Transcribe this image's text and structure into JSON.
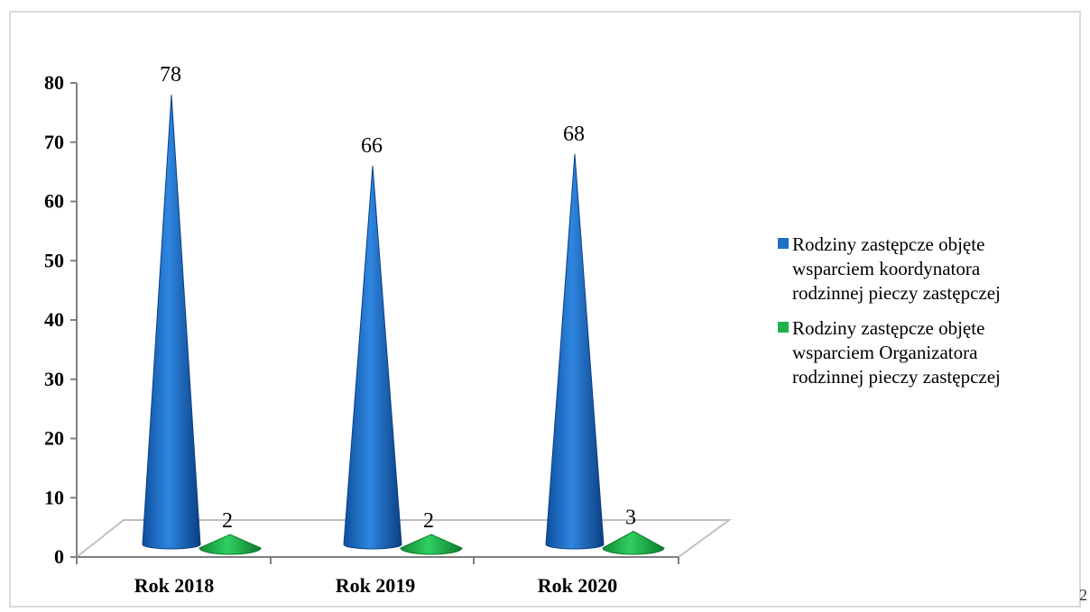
{
  "chart_data": {
    "type": "bar",
    "shape": "cone",
    "categories": [
      "Rok 2018",
      "Rok 2019",
      "Rok 2020"
    ],
    "series": [
      {
        "name": "Rodziny zastępcze objęte wsparciem koordynatora rodzinnej pieczy zastępczej",
        "color": "#1f6fc5",
        "values": [
          78,
          66,
          68
        ]
      },
      {
        "name": "Rodziny zastępcze objęte wsparciem Organizatora rodzinnej pieczy zastępczej",
        "color": "#22b04a",
        "values": [
          2,
          2,
          3
        ]
      }
    ],
    "ylim": [
      0,
      80
    ],
    "yticks": [
      "0",
      "10",
      "20",
      "30",
      "40",
      "50",
      "60",
      "70",
      "80"
    ],
    "grid": false,
    "legend": "right",
    "title": "",
    "xlabel": "",
    "ylabel": ""
  },
  "legend": {
    "items": [
      {
        "lines": [
          "Rodziny zastępcze objęte",
          "wsparciem koordynatora",
          "rodzinnej pieczy zastępczej"
        ],
        "color": "#1f6fc5"
      },
      {
        "lines": [
          "Rodziny zastępcze objęte",
          "wsparciem Organizatora",
          "rodzinnej pieczy zastępczej"
        ],
        "color": "#22b04a"
      }
    ]
  },
  "corner_mark": "2"
}
